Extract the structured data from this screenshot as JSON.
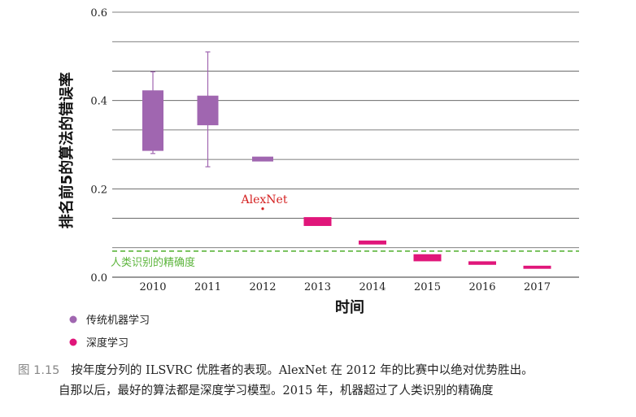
{
  "chart_data": {
    "type": "box",
    "title": "",
    "xlabel": "时间",
    "ylabel": "排名前5的算法的错误率",
    "categories": [
      "2010",
      "2011",
      "2012",
      "2013",
      "2014",
      "2015",
      "2016",
      "2017"
    ],
    "ylim": [
      0.0,
      0.6
    ],
    "yticks": [
      "0.0",
      "0.2",
      "0.4",
      "0.6"
    ],
    "grid": true,
    "series": [
      {
        "name": "传统机器学习",
        "color": "#a066b0",
        "boxes": [
          {
            "x": "2010",
            "low": 0.28,
            "q1": 0.286,
            "q3": 0.423,
            "high": 0.465
          },
          {
            "x": "2011",
            "low": 0.25,
            "q1": 0.344,
            "q3": 0.411,
            "high": 0.51
          },
          {
            "x": "2012",
            "low": 0.262,
            "q1": 0.262,
            "q3": 0.273,
            "high": 0.273
          }
        ]
      },
      {
        "name": "深度学习",
        "color": "#e0167a",
        "boxes": [
          {
            "x": "2013",
            "low": 0.116,
            "q1": 0.116,
            "q3": 0.136,
            "high": 0.136
          },
          {
            "x": "2014",
            "low": 0.074,
            "q1": 0.074,
            "q3": 0.083,
            "high": 0.083
          },
          {
            "x": "2015",
            "low": 0.036,
            "q1": 0.036,
            "q3": 0.052,
            "high": 0.052
          },
          {
            "x": "2016",
            "low": 0.028,
            "q1": 0.028,
            "q3": 0.036,
            "high": 0.036
          },
          {
            "x": "2017",
            "low": 0.019,
            "q1": 0.019,
            "q3": 0.026,
            "high": 0.026
          }
        ]
      }
    ],
    "points": [
      {
        "x": "2012",
        "y": 0.155,
        "label": "AlexNet",
        "color": "#d42020"
      }
    ],
    "reference_line": {
      "y": 0.059,
      "label": "人类识别的精确度",
      "color": "#5cb53c",
      "style": "dashed"
    },
    "legend": {
      "placement": "bottom-left"
    }
  },
  "caption": {
    "figure_number": "图 1.15",
    "line1": "按年度分列的 ILSVRC 优胜者的表现。AlexNet 在 2012 年的比赛中以绝对优势胜出。",
    "line2": "自那以后，最好的算法都是深度学习模型。2015 年，机器超过了人类识别的精确度"
  }
}
